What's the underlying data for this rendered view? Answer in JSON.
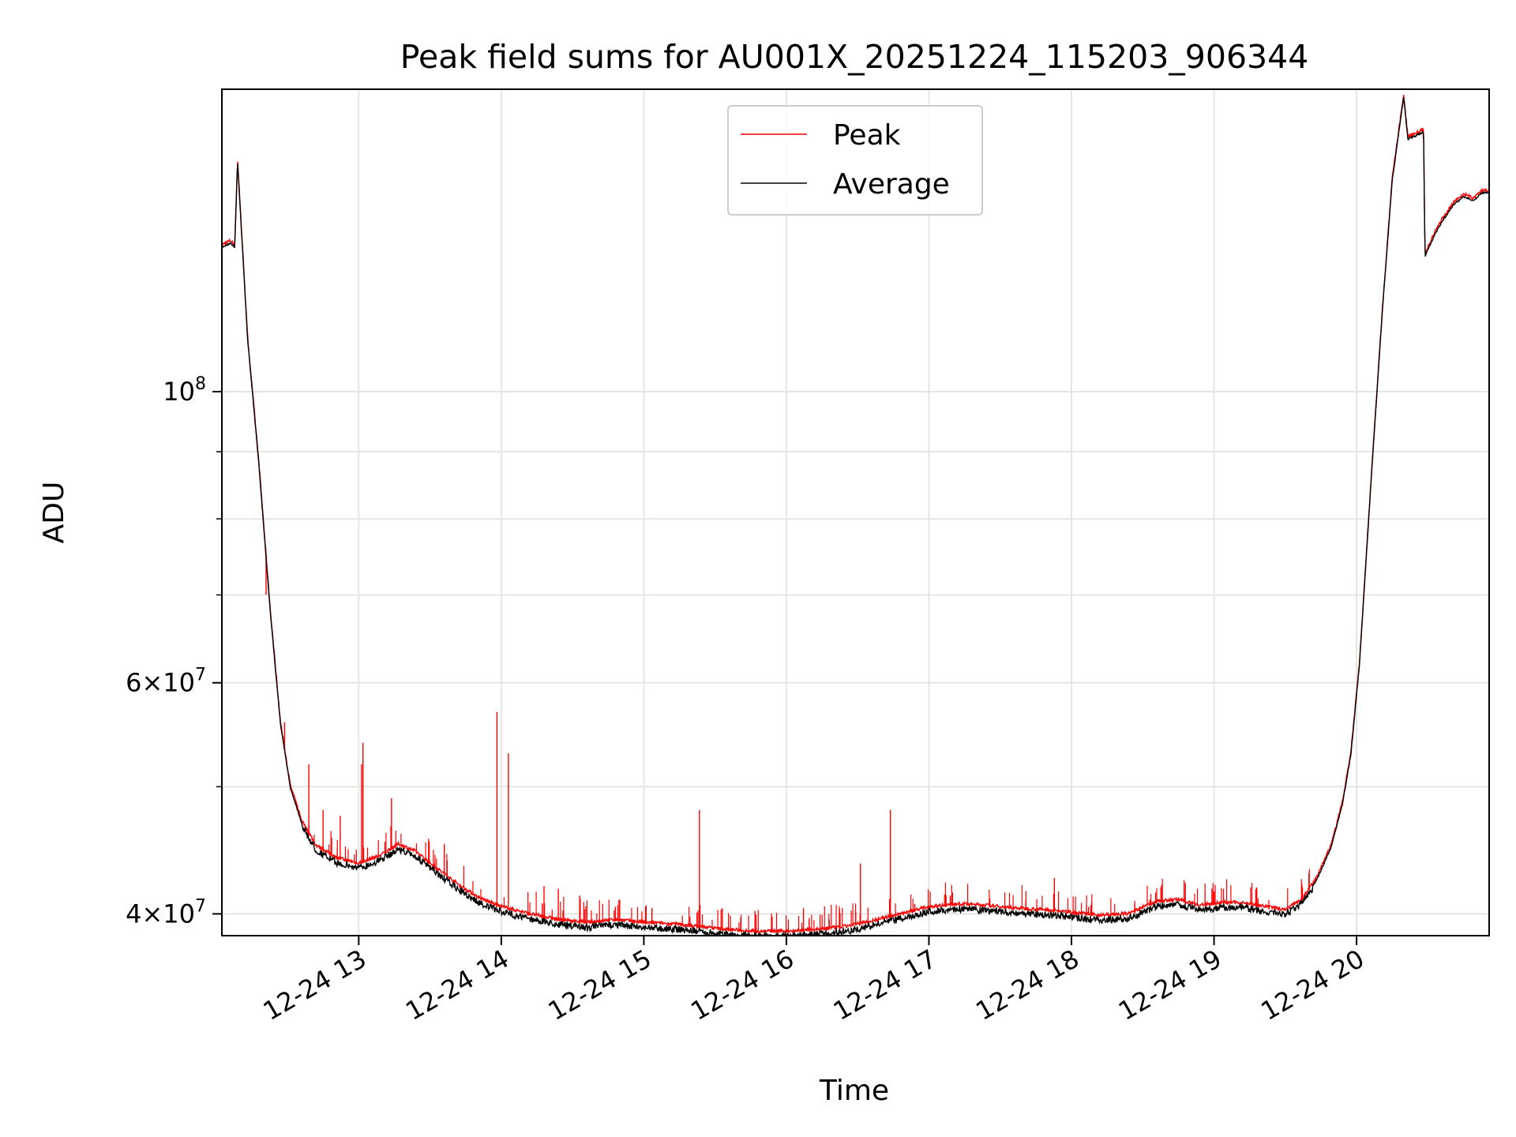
{
  "chart_data": {
    "type": "line",
    "title": "Peak field sums for AU001X_20251224_115203_906344",
    "xlabel": "Time",
    "ylabel": "ADU",
    "y_scale": "log",
    "ylim": [
      38500000,
      170000000
    ],
    "xlim_hours": [
      12.04,
      20.93
    ],
    "x_ticks": [
      {
        "value": 13,
        "label": "12-24 13"
      },
      {
        "value": 14,
        "label": "12-24 14"
      },
      {
        "value": 15,
        "label": "12-24 15"
      },
      {
        "value": 16,
        "label": "12-24 16"
      },
      {
        "value": 17,
        "label": "12-24 17"
      },
      {
        "value": 18,
        "label": "12-24 18"
      },
      {
        "value": 19,
        "label": "12-24 19"
      },
      {
        "value": 20,
        "label": "12-24 20"
      }
    ],
    "y_major_ticks": [
      {
        "value": 40000000,
        "base": "4",
        "exp": "7"
      },
      {
        "value": 60000000,
        "base": "6",
        "exp": "7"
      },
      {
        "value": 100000000,
        "base": "",
        "exp": "8"
      }
    ],
    "y_minor_ticks": [
      50000000,
      70000000,
      80000000,
      90000000
    ],
    "grid": true,
    "legend": {
      "position": "top-center",
      "entries": [
        {
          "name": "Peak",
          "color": "#ff0000"
        },
        {
          "name": "Average",
          "color": "#000000"
        }
      ]
    },
    "series": [
      {
        "name": "Average",
        "color": "#000000",
        "points": [
          [
            12.04,
            129000000
          ],
          [
            12.1,
            130000000
          ],
          [
            12.13,
            129000000
          ],
          [
            12.15,
            150000000
          ],
          [
            12.22,
            110000000
          ],
          [
            12.3,
            88000000
          ],
          [
            12.38,
            68000000
          ],
          [
            12.45,
            56000000
          ],
          [
            12.52,
            50000000
          ],
          [
            12.6,
            47000000
          ],
          [
            12.7,
            45000000
          ],
          [
            12.85,
            44000000
          ],
          [
            13.0,
            43600000
          ],
          [
            13.15,
            44200000
          ],
          [
            13.28,
            45100000
          ],
          [
            13.4,
            44500000
          ],
          [
            13.55,
            43200000
          ],
          [
            13.7,
            42000000
          ],
          [
            13.85,
            41000000
          ],
          [
            14.0,
            40400000
          ],
          [
            14.2,
            39900000
          ],
          [
            14.4,
            39500000
          ],
          [
            14.6,
            39300000
          ],
          [
            14.8,
            39500000
          ],
          [
            15.0,
            39300000
          ],
          [
            15.2,
            39200000
          ],
          [
            15.4,
            39000000
          ],
          [
            15.6,
            38800000
          ],
          [
            15.8,
            38700000
          ],
          [
            16.0,
            38700000
          ],
          [
            16.2,
            38800000
          ],
          [
            16.4,
            39000000
          ],
          [
            16.6,
            39400000
          ],
          [
            16.8,
            39900000
          ],
          [
            17.0,
            40400000
          ],
          [
            17.2,
            40600000
          ],
          [
            17.4,
            40500000
          ],
          [
            17.6,
            40300000
          ],
          [
            17.8,
            40200000
          ],
          [
            18.0,
            40000000
          ],
          [
            18.2,
            39800000
          ],
          [
            18.4,
            39900000
          ],
          [
            18.6,
            40800000
          ],
          [
            18.75,
            40900000
          ],
          [
            18.9,
            40500000
          ],
          [
            19.05,
            40700000
          ],
          [
            19.2,
            40700000
          ],
          [
            19.35,
            40400000
          ],
          [
            19.5,
            40200000
          ],
          [
            19.62,
            41000000
          ],
          [
            19.72,
            42500000
          ],
          [
            19.82,
            45000000
          ],
          [
            19.9,
            48500000
          ],
          [
            19.96,
            53000000
          ],
          [
            20.02,
            62000000
          ],
          [
            20.1,
            85000000
          ],
          [
            20.18,
            115000000
          ],
          [
            20.25,
            145000000
          ],
          [
            20.33,
            168000000
          ],
          [
            20.36,
            156000000
          ],
          [
            20.42,
            157000000
          ],
          [
            20.47,
            158000000
          ],
          [
            20.48,
            127000000
          ],
          [
            20.55,
            132000000
          ],
          [
            20.6,
            135000000
          ],
          [
            20.68,
            139000000
          ],
          [
            20.75,
            141000000
          ],
          [
            20.82,
            140000000
          ],
          [
            20.88,
            142000000
          ],
          [
            20.93,
            142000000
          ]
        ]
      },
      {
        "name": "Peak",
        "color": "#ff0000",
        "spikes": [
          [
            12.48,
            56000000
          ],
          [
            12.35,
            70000000
          ],
          [
            12.65,
            52000000
          ],
          [
            12.75,
            48000000
          ],
          [
            12.87,
            47500000
          ],
          [
            13.02,
            52000000
          ],
          [
            13.03,
            54000000
          ],
          [
            13.23,
            49000000
          ],
          [
            13.6,
            45200000
          ],
          [
            13.97,
            57000000
          ],
          [
            14.05,
            53000000
          ],
          [
            14.3,
            42000000
          ],
          [
            14.4,
            41800000
          ],
          [
            14.55,
            41300000
          ],
          [
            14.8,
            40500000
          ],
          [
            15.39,
            48000000
          ],
          [
            15.55,
            40400000
          ],
          [
            15.78,
            40200000
          ],
          [
            15.9,
            39800000
          ],
          [
            16.12,
            40400000
          ],
          [
            16.52,
            43700000
          ],
          [
            16.73,
            48000000
          ],
          [
            16.9,
            40700000
          ],
          [
            17.15,
            41300000
          ],
          [
            17.88,
            42600000
          ],
          [
            18.12,
            40500000
          ],
          [
            18.55,
            41000000
          ],
          [
            19.0,
            41600000
          ],
          [
            19.3,
            41900000
          ],
          [
            19.62,
            41900000
          ]
        ]
      }
    ]
  }
}
